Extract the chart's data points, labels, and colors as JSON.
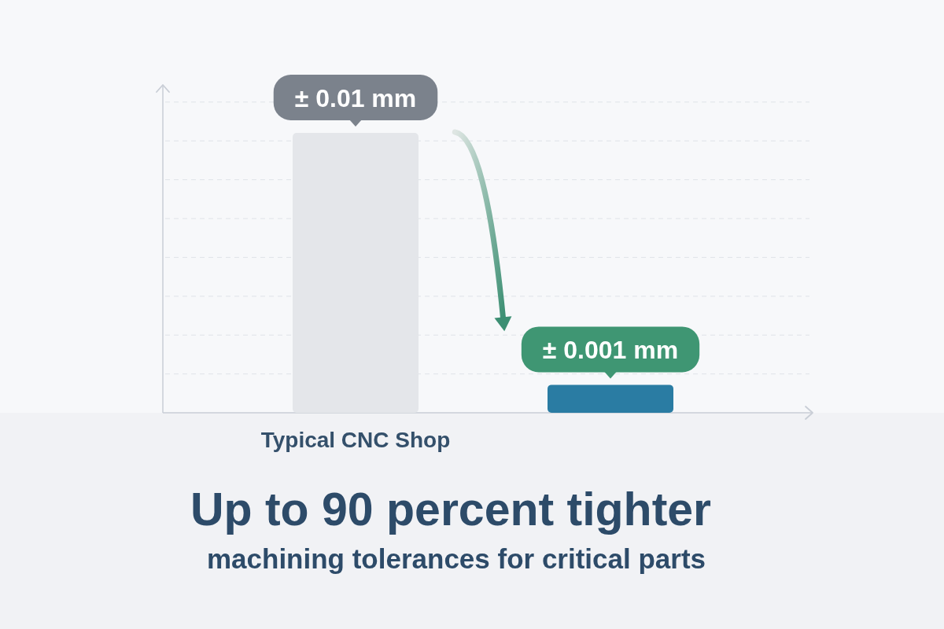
{
  "chart_data": {
    "type": "bar",
    "title": "Up to 90 percent tighter",
    "subtitle": "machining tolerances for critical parts",
    "categories": [
      "Typical CNC Shop",
      null
    ],
    "values": [
      0.01,
      0.001
    ],
    "colors": [
      "#e4e6ea",
      "#2a7ca3"
    ],
    "value_labels": [
      "± 0.01 mm",
      "± 0.001 mm"
    ],
    "grid": "y"
  }
}
